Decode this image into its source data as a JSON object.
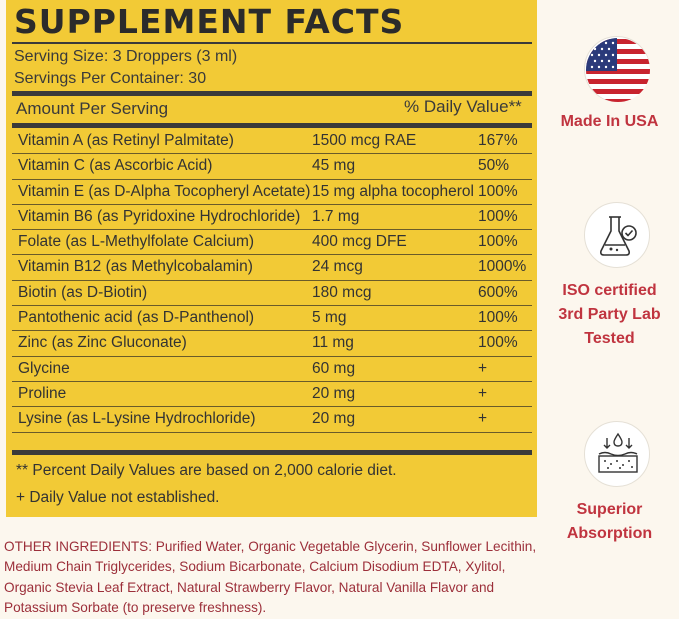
{
  "title": "SUPPLEMENT FACTS",
  "serving_size": "Serving Size: 3 Droppers (3 ml)",
  "servings_per_container": "Servings Per Container: 30",
  "header": {
    "amount": "Amount Per Serving",
    "daily_value": "% Daily Value**"
  },
  "rows": [
    {
      "name": "Vitamin A (as Retinyl Palmitate)",
      "amount": "1500 mcg RAE",
      "dv": "167%"
    },
    {
      "name": "Vitamin C (as Ascorbic Acid)",
      "amount": "45 mg",
      "dv": "50%"
    },
    {
      "name": "Vitamin E (as D-Alpha Tocopheryl Acetate)",
      "amount": "15 mg alpha tocopherol",
      "dv": "100%"
    },
    {
      "name": "Vitamin B6 (as Pyridoxine Hydrochloride)",
      "amount": "1.7 mg",
      "dv": "100%"
    },
    {
      "name": "Folate (as L-Methylfolate Calcium)",
      "amount": "400 mcg DFE",
      "dv": "100%"
    },
    {
      "name": "Vitamin B12 (as Methylcobalamin)",
      "amount": "24 mcg",
      "dv": "1000%"
    },
    {
      "name": "Biotin (as D-Biotin)",
      "amount": "180 mcg",
      "dv": "600%"
    },
    {
      "name": "Pantothenic acid (as D-Panthenol)",
      "amount": "5 mg",
      "dv": "100%"
    },
    {
      "name": "Zinc (as Zinc Gluconate)",
      "amount": "11 mg",
      "dv": "100%"
    },
    {
      "name": "Glycine",
      "amount": "60 mg",
      "dv": "+"
    },
    {
      "name": "Proline",
      "amount": "20 mg",
      "dv": "+"
    },
    {
      "name": "Lysine (as L-Lysine Hydrochloride)",
      "amount": "20 mg",
      "dv": "+"
    }
  ],
  "footnotes": {
    "percent_dv": "** Percent Daily Values are based on 2,000 calorie diet.",
    "not_established": "+ Daily Value not established."
  },
  "other_ingredients": "OTHER INGREDIENTS: Purified Water, Organic Vegetable Glycerin, Sunflower Lecithin, Medium Chain Triglycerides, Sodium Bicarbonate, Calcium Disodium EDTA, Xylitol, Organic Stevia Leaf Extract, Natural Strawberry Flavor, Natural Vanilla Flavor and Potassium Sorbate (to preserve freshness).",
  "badges": {
    "usa": {
      "label": "Made In USA",
      "icon": "us-flag-icon"
    },
    "lab": {
      "label_line1": "ISO certified",
      "label_line2": "3rd Party Lab",
      "label_line3": "Tested",
      "icon": "lab-flask-icon"
    },
    "absorption": {
      "label_line1": "Superior",
      "label_line2": "Absorption",
      "icon": "skin-absorption-icon"
    }
  },
  "colors": {
    "panel": "#f2ca36",
    "text_dark": "#333333",
    "accent_red": "#c0343f",
    "ingredients_red": "#9c2f3a"
  }
}
